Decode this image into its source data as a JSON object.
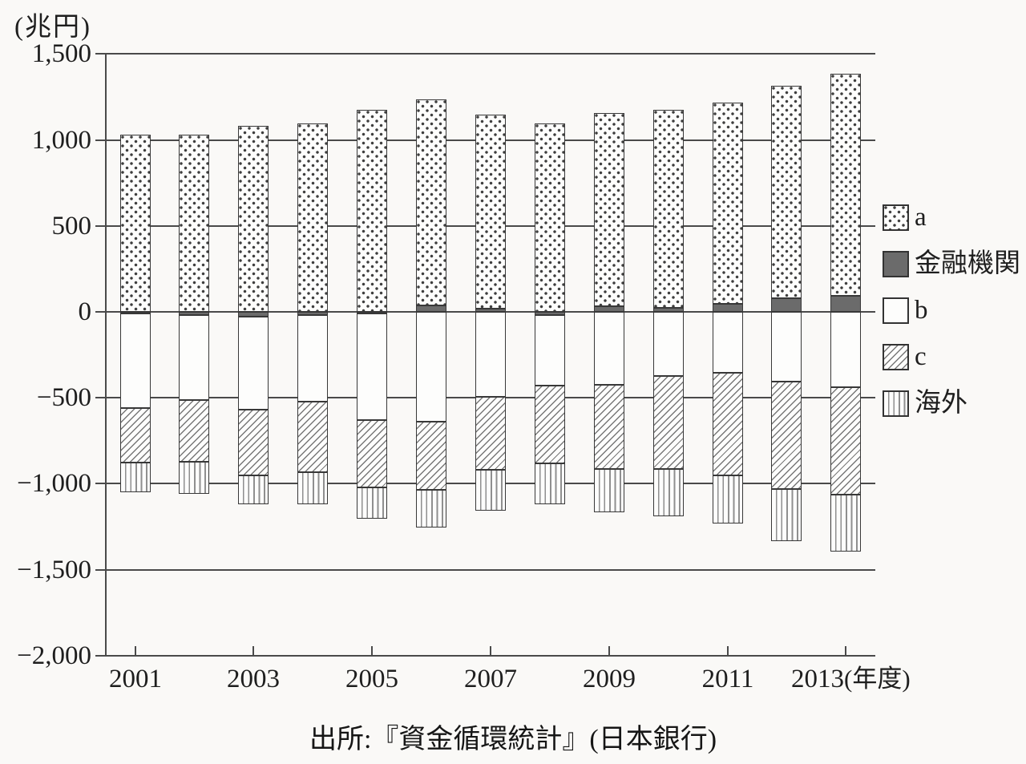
{
  "page": {
    "background": "#faf9f7"
  },
  "chart_data": {
    "type": "bar",
    "stacked": true,
    "title": "",
    "unit_label": "(兆円)",
    "x_axis_suffix": "(年度)",
    "source_caption": "出所:『資金循環統計』(日本銀行)",
    "categories": [
      "2001",
      "2002",
      "2003",
      "2004",
      "2005",
      "2006",
      "2007",
      "2008",
      "2009",
      "2010",
      "2011",
      "2012",
      "2013"
    ],
    "x_labeled_every": 2,
    "ylim": [
      -2000,
      1500
    ],
    "grid": true,
    "legend_position": "right",
    "yticks": [
      {
        "value": 1500,
        "label": "1,500"
      },
      {
        "value": 1000,
        "label": "1,000"
      },
      {
        "value": 500,
        "label": "500"
      },
      {
        "value": 0,
        "label": "0"
      },
      {
        "value": -500,
        "label": "−500"
      },
      {
        "value": -1000,
        "label": "−1,000"
      },
      {
        "value": -1500,
        "label": "−1,500"
      },
      {
        "value": -2000,
        "label": "−2,000"
      }
    ],
    "series": [
      {
        "name": "a",
        "pattern": "dots",
        "values": [
          1030,
          1030,
          1080,
          1095,
          1175,
          1200,
          1130,
          1095,
          1125,
          1150,
          1170,
          1235,
          1290
        ]
      },
      {
        "name": "金融機関",
        "pattern": "solid",
        "values": [
          -10,
          -18,
          -30,
          -18,
          -5,
          38,
          20,
          -18,
          33,
          23,
          47,
          81,
          93
        ]
      },
      {
        "name": "b",
        "pattern": "plain",
        "values": [
          -550,
          -493,
          -539,
          -504,
          -620,
          -637,
          -493,
          -411,
          -423,
          -374,
          -354,
          -405,
          -439
        ]
      },
      {
        "name": "c",
        "pattern": "hatch",
        "values": [
          -315,
          -361,
          -383,
          -412,
          -390,
          -395,
          -426,
          -451,
          -489,
          -539,
          -597,
          -626,
          -624
        ]
      },
      {
        "name": "海外",
        "pattern": "vlines",
        "values": [
          -171,
          -186,
          -168,
          -186,
          -180,
          -218,
          -238,
          -240,
          -251,
          -275,
          -279,
          -304,
          -333
        ]
      }
    ],
    "stack_order": [
      "金融機関",
      "a",
      "b",
      "c",
      "海外"
    ],
    "legend": [
      {
        "label": "a",
        "pattern": "dots"
      },
      {
        "label": "金融機関",
        "pattern": "solid"
      },
      {
        "label": "b",
        "pattern": "plain"
      },
      {
        "label": "c",
        "pattern": "hatch"
      },
      {
        "label": "海外",
        "pattern": "vlines"
      }
    ],
    "colors": {
      "solid_fill": "#6b6b6b",
      "line": "#3a3a3a",
      "pattern_ink": "#787878"
    }
  }
}
